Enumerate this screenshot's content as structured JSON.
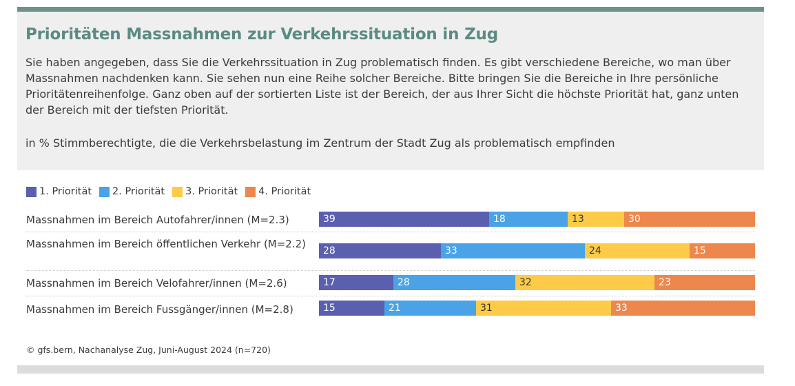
{
  "header": {
    "title": "Prioritäten Massnahmen zur Verkehrssituation in Zug",
    "intro": "Sie haben angegeben, dass Sie die Verkehrssituation in Zug problematisch finden. Es gibt verschiedene Bereiche, wo man über Massnahmen nachdenken kann. Sie sehen nun eine Reihe solcher Bereiche. Bitte bringen Sie die Bereiche in Ihre persönliche Prioritätenreihenfolge. Ganz oben auf der sortierten Liste ist der Bereich, der aus Ihrer Sicht die höchste Priorität hat, ganz unten der Bereich mit der tiefsten Priorität.",
    "subtitle": "in % Stimmberechtigte, die die Verkehrsbelastung im Zentrum der Stadt Zug als problematisch empfinden"
  },
  "footer": {
    "source": "© gfs.bern, Nachanalyse Zug, Juni-August 2024 (n=720)"
  },
  "chart_data": {
    "type": "bar",
    "orientation": "horizontal",
    "stacked": true,
    "title": "Prioritäten Massnahmen zur Verkehrssituation in Zug",
    "xlabel": "",
    "ylabel": "",
    "xlim": [
      0,
      100
    ],
    "legend_position": "top-left",
    "categories": [
      "Massnahmen im Bereich Autofahrer/innen (M=2.3)",
      "Massnahmen im Bereich öffentlichen Verkehr (M=2.2)",
      "Massnahmen im Bereich Velofahrer/innen (M=2.6)",
      "Massnahmen im Bereich Fussgänger/innen (M=2.8)"
    ],
    "series": [
      {
        "name": "1. Priorität",
        "color": "#5a5fb0",
        "label_color": "#ffffff",
        "values": [
          39,
          28,
          17,
          15
        ]
      },
      {
        "name": "2. Priorität",
        "color": "#4aa3e6",
        "label_color": "#ffffff",
        "values": [
          18,
          33,
          28,
          21
        ]
      },
      {
        "name": "3. Priorität",
        "color": "#fdcb47",
        "label_color": "#333333",
        "values": [
          13,
          24,
          32,
          31
        ]
      },
      {
        "name": "4. Priorität",
        "color": "#ee874c",
        "label_color": "#ffffff",
        "values": [
          30,
          15,
          23,
          33
        ]
      }
    ]
  }
}
